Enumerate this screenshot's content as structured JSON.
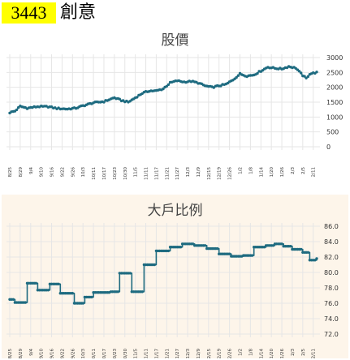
{
  "header": {
    "code": "3443",
    "name": "創意"
  },
  "colors": {
    "line": "#1e6b80",
    "code_bg": "#ffff00",
    "panel2_bg": "#fdf5ea"
  },
  "chart_data": [
    {
      "type": "line",
      "title": "股價",
      "ylim": [
        0,
        3000
      ],
      "yticks": [
        0,
        500,
        1000,
        1500,
        2000,
        2500,
        3000
      ],
      "grid": true,
      "x_tick_labels": [
        "8/25",
        "8/29",
        "9/4",
        "9/10",
        "9/16",
        "9/22",
        "9/26",
        "10/3",
        "10/11",
        "10/17",
        "10/23",
        "10/30",
        "11/5",
        "11/11",
        "11/17",
        "11/21",
        "11/27",
        "12/3",
        "12/9",
        "12/15",
        "12/19",
        "12/26",
        "1/2",
        "1/8",
        "1/14",
        "1/20",
        "1/26",
        "2/3",
        "2/5",
        "2/11"
      ],
      "x_tick_positions": [
        0,
        6,
        12,
        18,
        24,
        30,
        36,
        42,
        48,
        54,
        60,
        66,
        72,
        78,
        84,
        90,
        96,
        102,
        108,
        114,
        120,
        126,
        132,
        138,
        144,
        150,
        156,
        162,
        168,
        174
      ],
      "x_count": 177,
      "anchors": [
        [
          0,
          1150
        ],
        [
          3,
          1200
        ],
        [
          6,
          1360
        ],
        [
          10,
          1300
        ],
        [
          16,
          1350
        ],
        [
          22,
          1350
        ],
        [
          27,
          1290
        ],
        [
          33,
          1270
        ],
        [
          38,
          1300
        ],
        [
          42,
          1380
        ],
        [
          48,
          1480
        ],
        [
          54,
          1520
        ],
        [
          60,
          1650
        ],
        [
          64,
          1560
        ],
        [
          68,
          1500
        ],
        [
          72,
          1650
        ],
        [
          76,
          1800
        ],
        [
          80,
          1880
        ],
        [
          84,
          1880
        ],
        [
          88,
          1950
        ],
        [
          92,
          2150
        ],
        [
          96,
          2220
        ],
        [
          100,
          2180
        ],
        [
          104,
          2200
        ],
        [
          108,
          2150
        ],
        [
          112,
          2050
        ],
        [
          116,
          2000
        ],
        [
          120,
          2050
        ],
        [
          124,
          2100
        ],
        [
          128,
          2250
        ],
        [
          132,
          2450
        ],
        [
          136,
          2380
        ],
        [
          140,
          2420
        ],
        [
          144,
          2550
        ],
        [
          148,
          2680
        ],
        [
          152,
          2640
        ],
        [
          156,
          2620
        ],
        [
          160,
          2700
        ],
        [
          164,
          2650
        ],
        [
          168,
          2400
        ],
        [
          170,
          2300
        ],
        [
          172,
          2450
        ],
        [
          176,
          2500
        ]
      ]
    },
    {
      "type": "line",
      "title": "大戶比例",
      "ylim": [
        72,
        86
      ],
      "yticks": [
        72.0,
        74.0,
        76.0,
        78.0,
        80.0,
        82.0,
        84.0,
        86.0
      ],
      "grid": true,
      "x_tick_labels": [
        "8/25",
        "8/29",
        "9/4",
        "9/10",
        "9/16",
        "9/22",
        "9/26",
        "10/3",
        "10/11",
        "10/17",
        "10/23",
        "10/30",
        "11/5",
        "11/11",
        "11/17",
        "11/21",
        "11/27",
        "12/3",
        "12/9",
        "12/15",
        "12/19",
        "12/26",
        "1/2",
        "1/8",
        "1/14",
        "1/20",
        "1/26",
        "2/3",
        "2/5",
        "2/11"
      ],
      "x_tick_positions": [
        0,
        6,
        12,
        18,
        24,
        30,
        36,
        42,
        48,
        54,
        60,
        66,
        72,
        78,
        84,
        90,
        96,
        102,
        108,
        114,
        120,
        126,
        132,
        138,
        144,
        150,
        156,
        162,
        168,
        174
      ],
      "x_count": 177,
      "steps": [
        [
          0,
          76.5
        ],
        [
          3,
          76.1
        ],
        [
          10,
          78.6
        ],
        [
          16,
          77.7
        ],
        [
          23,
          78.5
        ],
        [
          29,
          77.3
        ],
        [
          37,
          76.0
        ],
        [
          43,
          76.8
        ],
        [
          48,
          77.4
        ],
        [
          58,
          77.5
        ],
        [
          63,
          79.9
        ],
        [
          70,
          77.5
        ],
        [
          77,
          81.0
        ],
        [
          84,
          82.8
        ],
        [
          92,
          83.3
        ],
        [
          99,
          83.7
        ],
        [
          106,
          83.5
        ],
        [
          113,
          83.1
        ],
        [
          120,
          82.4
        ],
        [
          127,
          82.1
        ],
        [
          134,
          82.2
        ],
        [
          140,
          83.3
        ],
        [
          147,
          83.5
        ],
        [
          152,
          83.7
        ],
        [
          157,
          83.4
        ],
        [
          162,
          83.0
        ],
        [
          168,
          82.6
        ],
        [
          172,
          81.6
        ],
        [
          176,
          81.8
        ]
      ]
    }
  ]
}
